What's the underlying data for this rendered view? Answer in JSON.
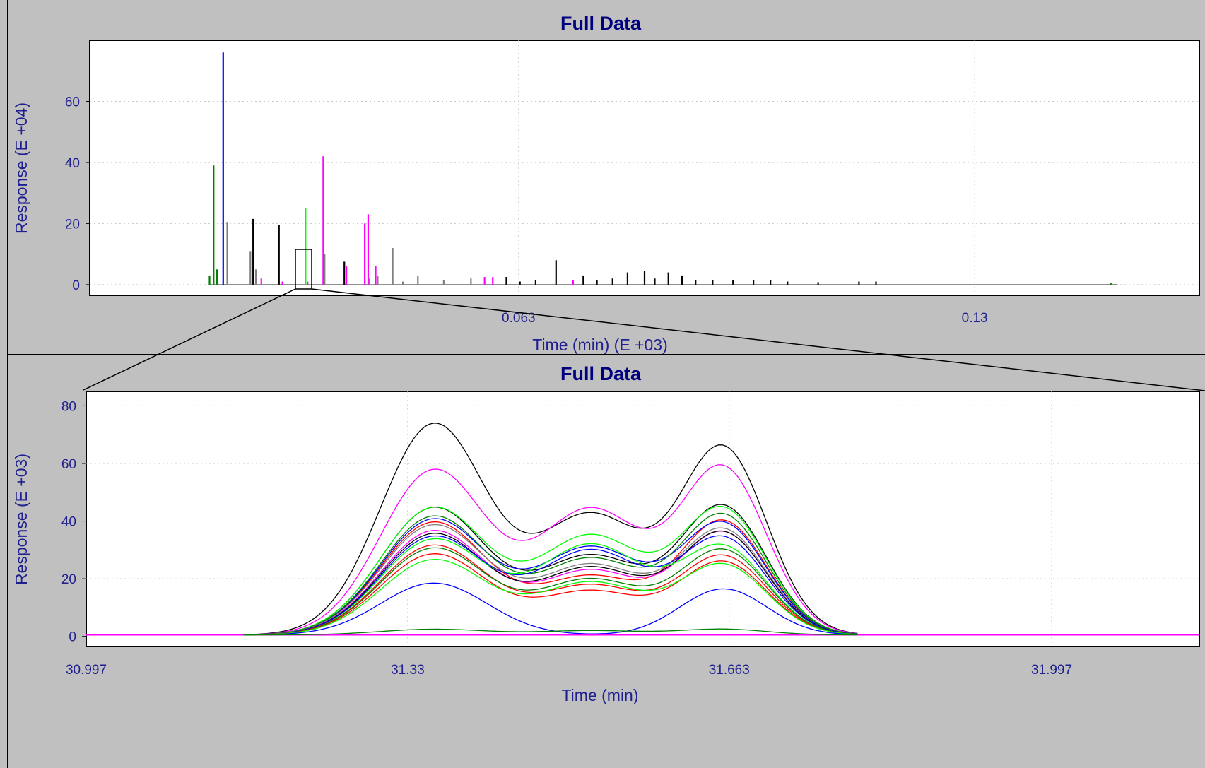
{
  "panels": [
    {
      "title": "Full Data",
      "xlabel": "Time (min) (E +03)",
      "ylabel": "Response (E +04)"
    },
    {
      "title": "Full Data",
      "xlabel": "Time (min)",
      "ylabel": "Response (E +03)"
    }
  ],
  "chart_data": [
    {
      "type": "line",
      "title": "Full Data",
      "xlabel": "Time (min) (E +03)",
      "ylabel": "Response (E +04)",
      "xlim": [
        0.0,
        0.163
      ],
      "ylim": [
        -3.5,
        80
      ],
      "x_ticks": [
        0.063,
        0.13
      ],
      "x_tick_labels": [
        "0.063",
        "0.13"
      ],
      "y_ticks": [
        0,
        20,
        40,
        60
      ],
      "grid": true,
      "peaks": [
        {
          "x": 0.0176,
          "y": 3,
          "color": "#008000"
        },
        {
          "x": 0.0182,
          "y": 39,
          "color": "#008000"
        },
        {
          "x": 0.0187,
          "y": 5,
          "color": "#008000"
        },
        {
          "x": 0.0196,
          "y": 76,
          "color": "#0000ff"
        },
        {
          "x": 0.0202,
          "y": 20.5,
          "color": "#808080"
        },
        {
          "x": 0.0236,
          "y": 11,
          "color": "#808080"
        },
        {
          "x": 0.024,
          "y": 21.5,
          "color": "#000000"
        },
        {
          "x": 0.0244,
          "y": 5,
          "color": "#808080"
        },
        {
          "x": 0.0252,
          "y": 2,
          "color": "#ff00ff"
        },
        {
          "x": 0.0278,
          "y": 19.5,
          "color": "#000000"
        },
        {
          "x": 0.0283,
          "y": 1,
          "color": "#ff00ff"
        },
        {
          "x": 0.0317,
          "y": 25,
          "color": "#00ff00"
        },
        {
          "x": 0.032,
          "y": 1,
          "color": "#ff00ff"
        },
        {
          "x": 0.0343,
          "y": 42,
          "color": "#ff00ff"
        },
        {
          "x": 0.0345,
          "y": 10,
          "color": "#808080"
        },
        {
          "x": 0.0374,
          "y": 7.5,
          "color": "#000000"
        },
        {
          "x": 0.0377,
          "y": 6,
          "color": "#ff00ff"
        },
        {
          "x": 0.0404,
          "y": 20,
          "color": "#ff00ff"
        },
        {
          "x": 0.0409,
          "y": 23,
          "color": "#ff00ff"
        },
        {
          "x": 0.0411,
          "y": 2,
          "color": "#808080"
        },
        {
          "x": 0.042,
          "y": 6,
          "color": "#ff00ff"
        },
        {
          "x": 0.0423,
          "y": 3,
          "color": "#808080"
        },
        {
          "x": 0.0445,
          "y": 12,
          "color": "#808080"
        },
        {
          "x": 0.046,
          "y": 1,
          "color": "#808080"
        },
        {
          "x": 0.0482,
          "y": 3,
          "color": "#808080"
        },
        {
          "x": 0.052,
          "y": 1.5,
          "color": "#808080"
        },
        {
          "x": 0.056,
          "y": 2,
          "color": "#808080"
        },
        {
          "x": 0.058,
          "y": 2.5,
          "color": "#ff00ff"
        },
        {
          "x": 0.0592,
          "y": 2.5,
          "color": "#ff00ff"
        },
        {
          "x": 0.0612,
          "y": 2.5,
          "color": "#000000"
        },
        {
          "x": 0.0632,
          "y": 1,
          "color": "#000000"
        },
        {
          "x": 0.0655,
          "y": 1.5,
          "color": "#000000"
        },
        {
          "x": 0.0685,
          "y": 8,
          "color": "#000000"
        },
        {
          "x": 0.071,
          "y": 1.5,
          "color": "#ff00ff"
        },
        {
          "x": 0.0725,
          "y": 3,
          "color": "#000000"
        },
        {
          "x": 0.0745,
          "y": 1.5,
          "color": "#000000"
        },
        {
          "x": 0.0768,
          "y": 2,
          "color": "#000000"
        },
        {
          "x": 0.079,
          "y": 4,
          "color": "#000000"
        },
        {
          "x": 0.0815,
          "y": 4.5,
          "color": "#000000"
        },
        {
          "x": 0.083,
          "y": 2,
          "color": "#000000"
        },
        {
          "x": 0.085,
          "y": 4,
          "color": "#000000"
        },
        {
          "x": 0.087,
          "y": 3,
          "color": "#000000"
        },
        {
          "x": 0.089,
          "y": 1.5,
          "color": "#000000"
        },
        {
          "x": 0.0915,
          "y": 1.5,
          "color": "#000000"
        },
        {
          "x": 0.0945,
          "y": 1.5,
          "color": "#000000"
        },
        {
          "x": 0.0975,
          "y": 1.5,
          "color": "#000000"
        },
        {
          "x": 0.1,
          "y": 1.5,
          "color": "#000000"
        },
        {
          "x": 0.1025,
          "y": 1,
          "color": "#000000"
        },
        {
          "x": 0.107,
          "y": 0.8,
          "color": "#000000"
        },
        {
          "x": 0.113,
          "y": 1,
          "color": "#000000"
        },
        {
          "x": 0.1155,
          "y": 1,
          "color": "#000000"
        },
        {
          "x": 0.15,
          "y": 0.6,
          "color": "#008000"
        }
      ]
    },
    {
      "type": "line",
      "title": "Full Data",
      "xlabel": "Time (min)",
      "ylabel": "Response (E +03)",
      "xlim": [
        30.997,
        32.15
      ],
      "ylim": [
        -3.5,
        85
      ],
      "x_ticks": [
        30.997,
        31.33,
        31.663,
        31.997
      ],
      "x_tick_labels": [
        "30.997",
        "31.33",
        "31.663",
        "31.997"
      ],
      "y_ticks": [
        0,
        20,
        40,
        60,
        80
      ],
      "grid": true,
      "baseline": [
        {
          "x": 30.997,
          "y": 0.5
        },
        {
          "x": 31.16,
          "y": 0.5
        },
        {
          "x": 31.76,
          "y": 0.5
        },
        {
          "x": 32.15,
          "y": 0.5
        }
      ],
      "series": [
        {
          "color": "#000000",
          "peak_heights": [
            73,
            41,
            64
          ]
        },
        {
          "color": "#ff00ff",
          "peak_heights": [
            57,
            43,
            57
          ]
        },
        {
          "color": "#000000",
          "peak_heights": [
            44,
            27,
            44
          ]
        },
        {
          "color": "#00ff00",
          "peak_heights": [
            44,
            34,
            43
          ]
        },
        {
          "color": "#ff0000",
          "peak_heights": [
            39,
            20,
            39
          ]
        },
        {
          "color": "#0000ff",
          "peak_heights": [
            40,
            30,
            38
          ]
        },
        {
          "color": "#008000",
          "peak_heights": [
            41,
            26,
            41
          ]
        },
        {
          "color": "#808080",
          "peak_heights": [
            38,
            24,
            36
          ]
        },
        {
          "color": "#ff00ff",
          "peak_heights": [
            36,
            22,
            35
          ]
        },
        {
          "color": "#000000",
          "peak_heights": [
            35,
            23,
            35
          ]
        },
        {
          "color": "#00ff00",
          "peak_heights": [
            33,
            31,
            30
          ]
        },
        {
          "color": "#0000ff",
          "peak_heights": [
            34,
            29,
            33
          ]
        },
        {
          "color": "#ff0000",
          "peak_heights": [
            31,
            17,
            27
          ]
        },
        {
          "color": "#008000",
          "peak_heights": [
            30,
            19,
            29
          ]
        },
        {
          "color": "#ff0000",
          "peak_heights": [
            28,
            15,
            25
          ]
        },
        {
          "color": "#00ff00",
          "peak_heights": [
            26,
            18,
            24
          ]
        },
        {
          "color": "#0000ff",
          "peak_heights": [
            18,
            0,
            16
          ]
        },
        {
          "color": "#008000",
          "peak_heights": [
            2,
            1.5,
            2
          ]
        }
      ]
    }
  ]
}
